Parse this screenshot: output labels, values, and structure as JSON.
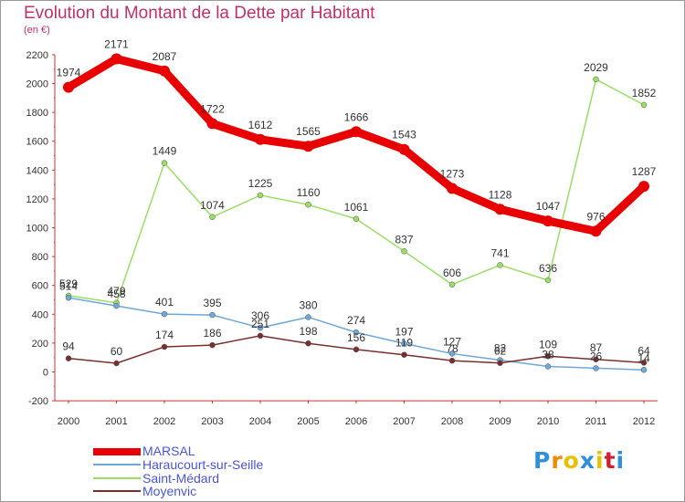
{
  "title": "Evolution du Montant de la Dette par Habitant",
  "unit": "(en €)",
  "logo": {
    "text": "Proxiti",
    "colors": [
      "#2f8fd8",
      "#f08a00",
      "#e8c000",
      "#2f8fd8",
      "#e8c000",
      "#d02030",
      "#2f8fd8"
    ]
  },
  "chart_data": {
    "type": "line",
    "title": "Evolution du Montant de la Dette par Habitant",
    "ylabel": "(en €)",
    "xlabel": "",
    "x": [
      "2000",
      "2001",
      "2002",
      "2003",
      "2004",
      "2005",
      "2006",
      "2007",
      "2008",
      "2009",
      "2010",
      "2011",
      "2012"
    ],
    "ylim": [
      -200,
      2200
    ],
    "yticks": [
      "-200",
      "0",
      "200",
      "400",
      "600",
      "800",
      "1000",
      "1200",
      "1400",
      "1600",
      "1800",
      "2000",
      "2200"
    ],
    "grid": false,
    "legend": "bottom-left",
    "series": [
      {
        "name": "MARSAL",
        "color": "#e80000",
        "width": 9,
        "values": [
          1974,
          2171,
          2087,
          1722,
          1612,
          1565,
          1666,
          1543,
          1273,
          1128,
          1047,
          976,
          1287
        ],
        "labels": [
          "1974",
          "2171",
          "2087",
          "1722",
          "1612",
          "1565",
          "1666",
          "1543",
          "1273",
          "1128",
          "1047",
          "976",
          "1287"
        ]
      },
      {
        "name": "Haraucourt-sur-Seille",
        "color": "#6ea8d8",
        "width": 1.5,
        "values": [
          514,
          458,
          401,
          395,
          306,
          380,
          274,
          197,
          127,
          82,
          38,
          26,
          14
        ],
        "labels": [
          "514",
          "458",
          "401",
          "395",
          "306",
          "380",
          "274",
          "197",
          "127",
          "82",
          "38",
          "26",
          "14"
        ]
      },
      {
        "name": "Saint-Médard",
        "color": "#99dd66",
        "width": 1.5,
        "values": [
          529,
          479,
          1449,
          1074,
          1225,
          1160,
          1061,
          837,
          606,
          741,
          636,
          2029,
          1852
        ],
        "labels": [
          "529",
          "479",
          "1449",
          "1074",
          "1225",
          "1160",
          "1061",
          "837",
          "606",
          "741",
          "636",
          "2029",
          "1852"
        ]
      },
      {
        "name": "Moyenvic",
        "color": "#7a2f2f",
        "width": 1.5,
        "values": [
          94,
          60,
          174,
          186,
          251,
          198,
          156,
          119,
          78,
          62,
          109,
          87,
          64
        ],
        "labels": [
          "94",
          "60",
          "174",
          "186",
          "251",
          "198",
          "156",
          "119",
          "78",
          "62",
          "109",
          "87",
          "64"
        ]
      }
    ]
  }
}
